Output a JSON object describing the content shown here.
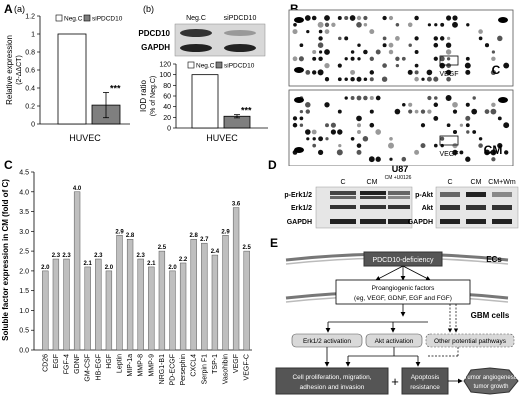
{
  "panel_labels": {
    "A": "A",
    "B": "B",
    "C": "C",
    "D": "D",
    "E": "E"
  },
  "panel_a": {
    "sub_a": "(a)",
    "sub_b": "(b)",
    "legend": [
      "Neg.C",
      "siPDCD10"
    ],
    "ylabel_line1": "Relative expression",
    "ylabel_line2": "(2-ΔΔCT)",
    "xlabel": "HUVEC",
    "stars": "***",
    "blot_labels": [
      "PDCD10",
      "GAPDH"
    ],
    "blot_header": [
      "Neg.C",
      "siPDCD10"
    ],
    "iod_ylabel_line1": "IOD ratio",
    "iod_ylabel_line2": "(% of Neg.C)",
    "iod_xlabel": "HUVEC",
    "iod_stars": "***"
  },
  "panel_b": {
    "vegf_label": "VEGF",
    "c_label": "C",
    "cm_label": "CM"
  },
  "panel_d": {
    "title": "U87",
    "left_header": [
      "C",
      "CM",
      "CM +U0126"
    ],
    "left_rows": [
      "p-Erk1/2",
      "Erk1/2",
      "GAPDH"
    ],
    "right_header": [
      "C",
      "CM",
      "CM+Wm"
    ],
    "right_rows": [
      "p-Akt",
      "Akt",
      "GAPDH"
    ]
  },
  "panel_e": {
    "ecs": "ECs",
    "deficiency": "PDCD10-deficiency",
    "factors_line1": "Proangiogenic factors",
    "factors_line2": "(eg, VEGF, GDNF, EGF and FGF)",
    "gbm": "GBM cells",
    "erk": "Erk1/2 activation",
    "akt": "Akt activation",
    "other": "Other potential pathways",
    "prolif_line1": "Cell proliferation, migration,",
    "prolif_line2": "adhesion and invasion",
    "plus": "+",
    "apop_line1": "Apoptosis",
    "apop_line2": "resistance",
    "tumor_line1": "Tumor angiogenesis",
    "tumor_line2": "tumor growth"
  },
  "chart_data": [
    {
      "type": "bar",
      "panel": "A(a)",
      "categories": [
        "HUVEC"
      ],
      "series": [
        {
          "name": "Neg.C",
          "values": [
            1.0
          ]
        },
        {
          "name": "siPDCD10",
          "values": [
            0.21
          ]
        }
      ],
      "error": [
        0,
        0.14
      ],
      "ylabel": "Relative expression (2-ΔΔCT)",
      "xlabel": "HUVEC",
      "ylim": [
        0,
        1.2
      ],
      "yticks": [
        "0",
        "0.2",
        "0.4",
        "0.6",
        "0.8",
        "1",
        "1.2"
      ],
      "colors": [
        "#ffffff",
        "#7f7f7f"
      ]
    },
    {
      "type": "bar",
      "panel": "A(b)",
      "categories": [
        "HUVEC"
      ],
      "series": [
        {
          "name": "Neg.C",
          "values": [
            100
          ]
        },
        {
          "name": "siPDCD10",
          "values": [
            22
          ]
        }
      ],
      "error": [
        0,
        3
      ],
      "ylabel": "IOD ratio (% of Neg.C)",
      "xlabel": "HUVEC",
      "ylim": [
        0,
        120
      ],
      "yticks": [
        "0",
        "20",
        "40",
        "60",
        "80",
        "100",
        "120"
      ],
      "colors": [
        "#ffffff",
        "#7f7f7f"
      ]
    },
    {
      "type": "bar",
      "panel": "C",
      "categories": [
        "CD26",
        "EGF",
        "FGF-4",
        "GDNF",
        "GM-CSF",
        "HB-EGF",
        "HGF",
        "Leptin",
        "MIP-1a",
        "MMP-8",
        "MMP-9",
        "NRG1-B1",
        "PD-ECGF",
        "Persephin",
        "CXCL4",
        "Serpin F1",
        "TSP-1",
        "Vasohibin",
        "VEGF",
        "VEGF-C"
      ],
      "values": [
        2.0,
        2.3,
        2.3,
        4.0,
        2.1,
        2.3,
        2.0,
        2.9,
        2.8,
        2.3,
        2.1,
        2.5,
        2.0,
        2.2,
        2.8,
        2.7,
        2.4,
        2.9,
        3.6,
        2.5
      ],
      "value_labels": [
        "2.0",
        "2.3",
        "2.3",
        "4.0",
        "2.1",
        "2.3",
        "2.0",
        "2.9",
        "2.8",
        "2.3",
        "2.1",
        "2.5",
        "2.0",
        "2.2",
        "2.8",
        "2.7",
        "2.4",
        "2.9",
        "3.6",
        "2.5"
      ],
      "ylabel": "Soluble factor expression in CM (fold of C)",
      "ylim": [
        0,
        4.5
      ],
      "yticks": [
        "0.0",
        "0.5",
        "1.0",
        "1.5",
        "2.0",
        "2.5",
        "3.0",
        "3.5",
        "4.0",
        "4.5"
      ],
      "color": "#bfbfbf"
    }
  ]
}
